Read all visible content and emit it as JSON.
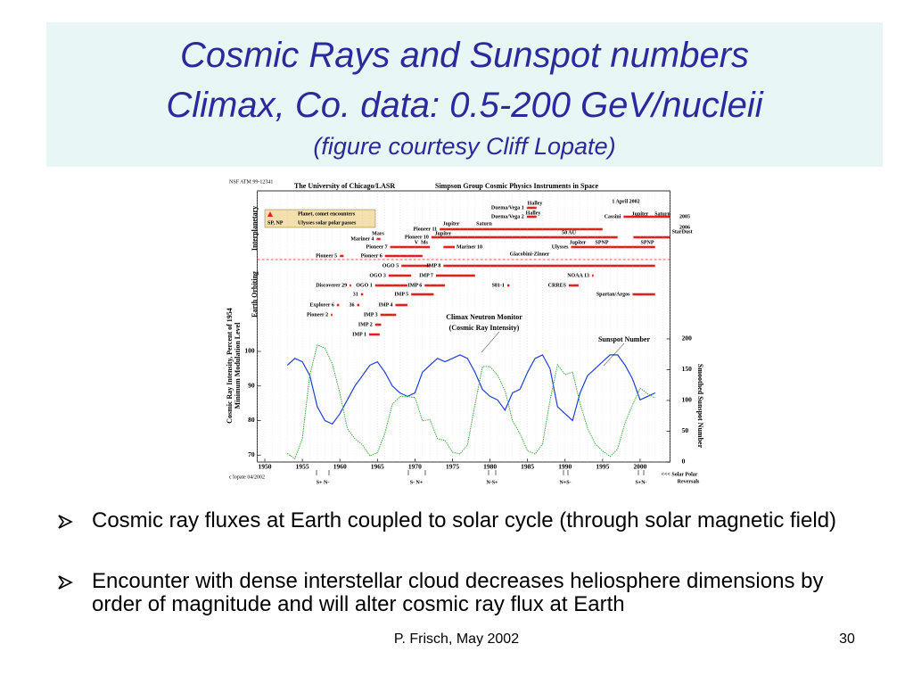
{
  "slide": {
    "title": [
      "Cosmic Rays and Sunspot numbers",
      "Climax, Co. data:  0.5-200 GeV/nucleii"
    ],
    "subtitle": "(figure courtesy Cliff Lopate)",
    "bullets": [
      "Cosmic ray fluxes at Earth coupled to solar cycle (through solar magnetic field)",
      "Encounter with dense interstellar cloud decreases heliosphere dimensions by order of magnitude and will alter cosmic ray flux at Earth"
    ],
    "footer": "P.  Frisch, May 2002",
    "page_number": "30"
  },
  "figure": {
    "header": [
      "NSF ATM 99-12341",
      "The University of Chicago/LASR",
      "Simpson Group Cosmic Physics Instruments in Space"
    ],
    "legend": [
      "Planet, comet encounters",
      "SP, NP",
      "Ulysses solar polar passes"
    ],
    "sections": [
      "Interplanetary",
      "Earth Orbiting"
    ],
    "credit": "c lopate 04/2002",
    "reversals": [
      "S+  N-",
      "S-    N+",
      "N-S+",
      "N+S-",
      "S+N-"
    ],
    "reversal_note": [
      "<<< Solar Polar",
      "Reversals"
    ],
    "curve_note": "(Cosmic Ray Intensity)",
    "annotations": [
      "Halley",
      "Halley",
      "1 April 2002",
      "Jupiter",
      "Saturn",
      "Mars",
      "Jupiter",
      "50 AU",
      "Jupiter",
      "Saturn",
      "Jupiter",
      "SPNP",
      "SPNP",
      "Giacobini-Zinner",
      "2005",
      "2006",
      "V",
      "Ms"
    ],
    "missions": [
      {
        "name": "Pioneer 5",
        "start": 1960,
        "end": 1960.5
      },
      {
        "name": "Pioneer 6",
        "start": 1966,
        "end": 1971
      },
      {
        "name": "Pioneer 7",
        "start": 1966.7,
        "end": 1972
      },
      {
        "name": "Mariner 10",
        "start": 1973.8,
        "end": 1975.3
      },
      {
        "name": "Ulysses",
        "start": 1990.8,
        "end": 2002
      },
      {
        "name": "Mariner 4",
        "start": 1964.9,
        "end": 1965.4
      },
      {
        "name": "Pioneer 10",
        "start": 1972.2,
        "end": 1997
      },
      {
        "name": "StarDust",
        "start": 1999.1,
        "end": 2004
      },
      {
        "name": "Pioneer 11",
        "start": 1973.3,
        "end": 1995
      },
      {
        "name": "Cassini",
        "start": 1997.8,
        "end": 2004
      },
      {
        "name": "Duema/Vega 1",
        "start": 1984.9,
        "end": 1986.2
      },
      {
        "name": "Duema/Vega 2",
        "start": 1984.9,
        "end": 1986.2
      },
      {
        "name": "OGO 5",
        "start": 1968.2,
        "end": 1972
      },
      {
        "name": "IMP 8",
        "start": 1973.8,
        "end": 2002
      },
      {
        "name": "OGO 3",
        "start": 1966.5,
        "end": 1969.5
      },
      {
        "name": "IMP 7",
        "start": 1972.8,
        "end": 1978
      },
      {
        "name": "NOAA 13",
        "start": 1993.6,
        "end": 1993.8
      },
      {
        "name": "Discoverer 29",
        "start": 1961.3,
        "end": 1961.5
      },
      {
        "name": "OGO 1",
        "start": 1964.7,
        "end": 1969
      },
      {
        "name": "IMP 6",
        "start": 1971.3,
        "end": 1974
      },
      {
        "name": "S81-1",
        "start": 1982.3,
        "end": 1982.6
      },
      {
        "name": "CRRES",
        "start": 1990.5,
        "end": 1991.8
      },
      {
        "name": "31",
        "start": 1962.8,
        "end": 1963.1
      },
      {
        "name": "IMP 5",
        "start": 1969.5,
        "end": 1972.5
      },
      {
        "name": "Spartan/Argos",
        "start": 1999,
        "end": 2002
      },
      {
        "name": "Explorer 6",
        "start": 1959.6,
        "end": 1959.9
      },
      {
        "name": "36",
        "start": 1962.3,
        "end": 1962.6
      },
      {
        "name": "IMP 4",
        "start": 1967.4,
        "end": 1969
      },
      {
        "name": "Pioneer 2",
        "start": 1958.8,
        "end": 1959
      },
      {
        "name": "IMP 3",
        "start": 1965.4,
        "end": 1967.5
      },
      {
        "name": "IMP 2",
        "start": 1964.7,
        "end": 1965.5
      },
      {
        "name": "IMP 1",
        "start": 1963.9,
        "end": 1965.3
      }
    ]
  },
  "chart_data": {
    "type": "line",
    "y_label": [
      "Cosmic Ray Intensity, Percent of 1954",
      "Minimum Modulation Level"
    ],
    "y2_label": "Smoothed Sunspot Number",
    "x": [
      1953,
      1954,
      1955,
      1956,
      1957,
      1958,
      1959,
      1960,
      1961,
      1962,
      1963,
      1964,
      1965,
      1966,
      1967,
      1968,
      1969,
      1970,
      1971,
      1972,
      1973,
      1974,
      1975,
      1976,
      1977,
      1978,
      1979,
      1980,
      1981,
      1982,
      1983,
      1984,
      1985,
      1986,
      1987,
      1988,
      1989,
      1990,
      1991,
      1992,
      1993,
      1994,
      1995,
      1996,
      1997,
      1998,
      1999,
      2000,
      2001,
      2002
    ],
    "series": [
      {
        "name": "Climax Neutron Monitor",
        "color": "#1f3fd6",
        "values": [
          96,
          98,
          97,
          93,
          84,
          80,
          79,
          82,
          86,
          90,
          93,
          96,
          97,
          94,
          90,
          88,
          87,
          88,
          94,
          96,
          98,
          97,
          98,
          99,
          98,
          94,
          89,
          87,
          86,
          83,
          88,
          89,
          94,
          98,
          99,
          95,
          84,
          82,
          80,
          88,
          93,
          95,
          97,
          99,
          99,
          96,
          92,
          86,
          87,
          88
        ]
      },
      {
        "name": "Sunspot Number",
        "color": "#3aa83a",
        "axis": "y2",
        "values": [
          14,
          5,
          38,
          142,
          190,
          185,
          159,
          112,
          54,
          38,
          28,
          10,
          15,
          47,
          94,
          106,
          106,
          105,
          67,
          69,
          38,
          35,
          16,
          13,
          28,
          93,
          155,
          155,
          141,
          116,
          67,
          46,
          18,
          13,
          29,
          100,
          158,
          142,
          146,
          95,
          55,
          30,
          18,
          9,
          21,
          64,
          93,
          120,
          111,
          104
        ]
      }
    ],
    "xlim": [
      1949,
      2004
    ],
    "xticks": [
      1950,
      1955,
      1960,
      1965,
      1970,
      1975,
      1980,
      1985,
      1990,
      1995,
      2000
    ],
    "ylim": [
      68,
      112
    ],
    "yticks": [
      70,
      80,
      90,
      100
    ],
    "y2lim": [
      0,
      247
    ],
    "y2ticks": [
      0,
      50,
      100,
      150,
      200
    ]
  }
}
